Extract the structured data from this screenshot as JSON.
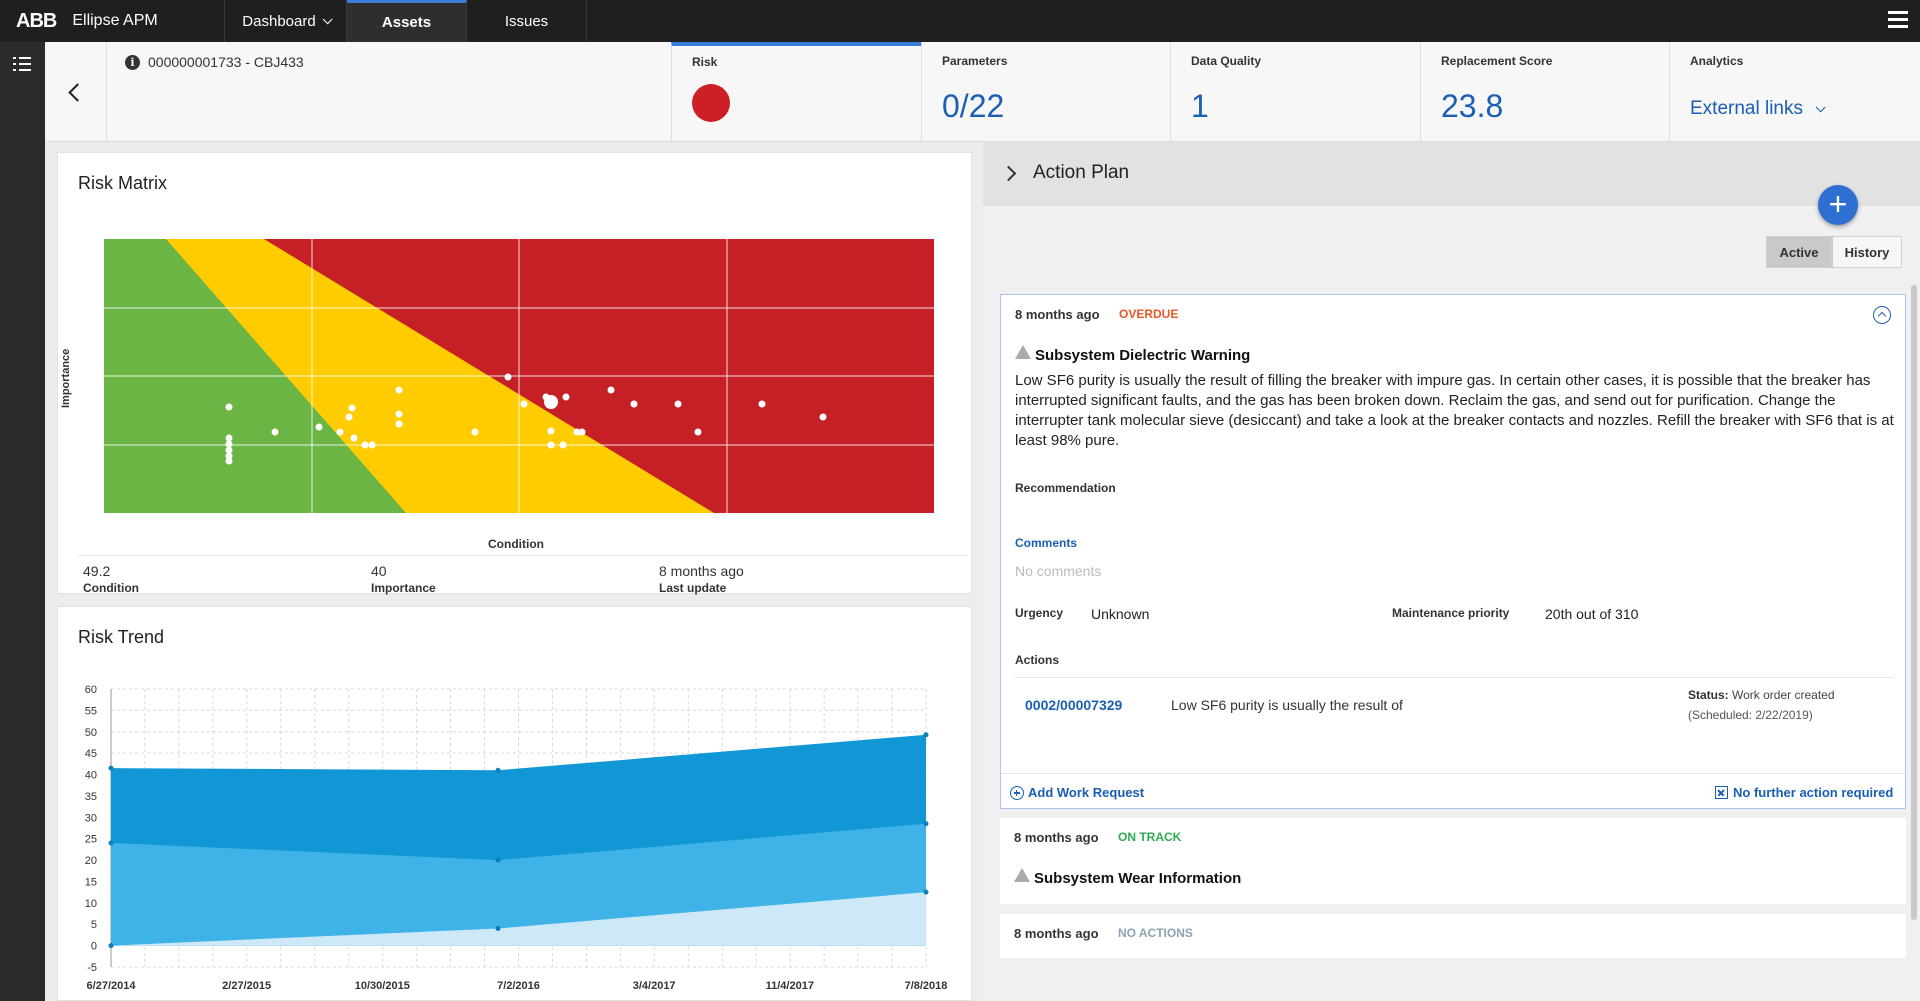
{
  "nav": {
    "logo": "ABB",
    "app_title": "Ellipse APM",
    "tabs": [
      {
        "label": "Dashboard",
        "dropdown": true
      },
      {
        "label": "Assets",
        "active": true
      },
      {
        "label": "Issues"
      }
    ]
  },
  "header": {
    "asset_id": "000000001733 - CBJ433",
    "kpis": [
      {
        "label": "Risk",
        "indicator_color": "#cc1f26"
      },
      {
        "label": "Parameters",
        "value": "0/22"
      },
      {
        "label": "Data Quality",
        "value": "1"
      },
      {
        "label": "Replacement Score",
        "value": "23.8"
      },
      {
        "label": "Analytics",
        "link": "External links"
      }
    ]
  },
  "risk_matrix": {
    "title": "Risk Matrix",
    "ylabel": "Importance",
    "xlabel": "Condition",
    "stats": [
      {
        "value": "49.2",
        "label": "Condition"
      },
      {
        "value": "40",
        "label": "Importance"
      },
      {
        "value": "8 months ago",
        "label": "Last update"
      }
    ],
    "colors": {
      "green": "#6bb544",
      "yellow": "#ffcc00",
      "red": "#c42026"
    }
  },
  "chart_data": {
    "type": "area",
    "title": "Risk Trend",
    "x": [
      "6/27/2014",
      "5/26/2016",
      "7/8/2018"
    ],
    "x_tick_labels": [
      "6/27/2014",
      "2/27/2015",
      "10/30/2015",
      "7/2/2016",
      "3/4/2017",
      "11/4/2017",
      "7/8/2018"
    ],
    "ylim": [
      -5,
      60
    ],
    "y_ticks": [
      -5,
      0,
      5,
      10,
      15,
      20,
      25,
      30,
      35,
      40,
      45,
      50,
      55,
      60
    ],
    "series": [
      {
        "values": [
          41.5,
          41,
          49.3
        ],
        "color": "#1197d6"
      },
      {
        "values": [
          24,
          20,
          28.5
        ],
        "color": "#3fb2e8"
      },
      {
        "values": [
          0,
          4,
          12.5
        ],
        "color": "#cde9f8"
      }
    ],
    "grid": true
  },
  "action_plan": {
    "title": "Action Plan",
    "add_label": "+",
    "toggle": {
      "active": "Active",
      "history": "History"
    },
    "cards": [
      {
        "time": "8 months ago",
        "status": "OVERDUE",
        "status_color": "#e8572a",
        "title": "Subsystem Dielectric Warning",
        "description": "Low SF6 purity is usually the result of filling the breaker with impure gas.  In certain other cases, it is possible that the breaker has interrupted significant faults, and the gas has been broken down. Reclaim the gas, and send out for purification.  Change the interrupter tank molecular sieve (desiccant) and take a look at the breaker contacts and nozzles.  Refill the breaker with SF6 that is at least 98% pure.",
        "recommendation_label": "Recommendation",
        "comments_label": "Comments",
        "comments_empty": "No comments",
        "urgency_label": "Urgency",
        "urgency_value": "Unknown",
        "priority_label": "Maintenance priority",
        "priority_value": "20th out of 310",
        "actions_label": "Actions",
        "action": {
          "id": "0002/00007329",
          "desc": "Low SF6 purity is usually the result of",
          "status_label": "Status:",
          "status_value": "Work order created",
          "scheduled": "(Scheduled:  2/22/2019)"
        },
        "add_work_request": "Add Work Request",
        "no_further": "No further action required"
      },
      {
        "time": "8 months ago",
        "status": "ON TRACK",
        "status_color": "#2eaa52",
        "title": "Subsystem Wear Information"
      },
      {
        "time": "8 months ago",
        "status": "NO ACTIONS",
        "status_color": "#8fa2b3"
      }
    ]
  }
}
